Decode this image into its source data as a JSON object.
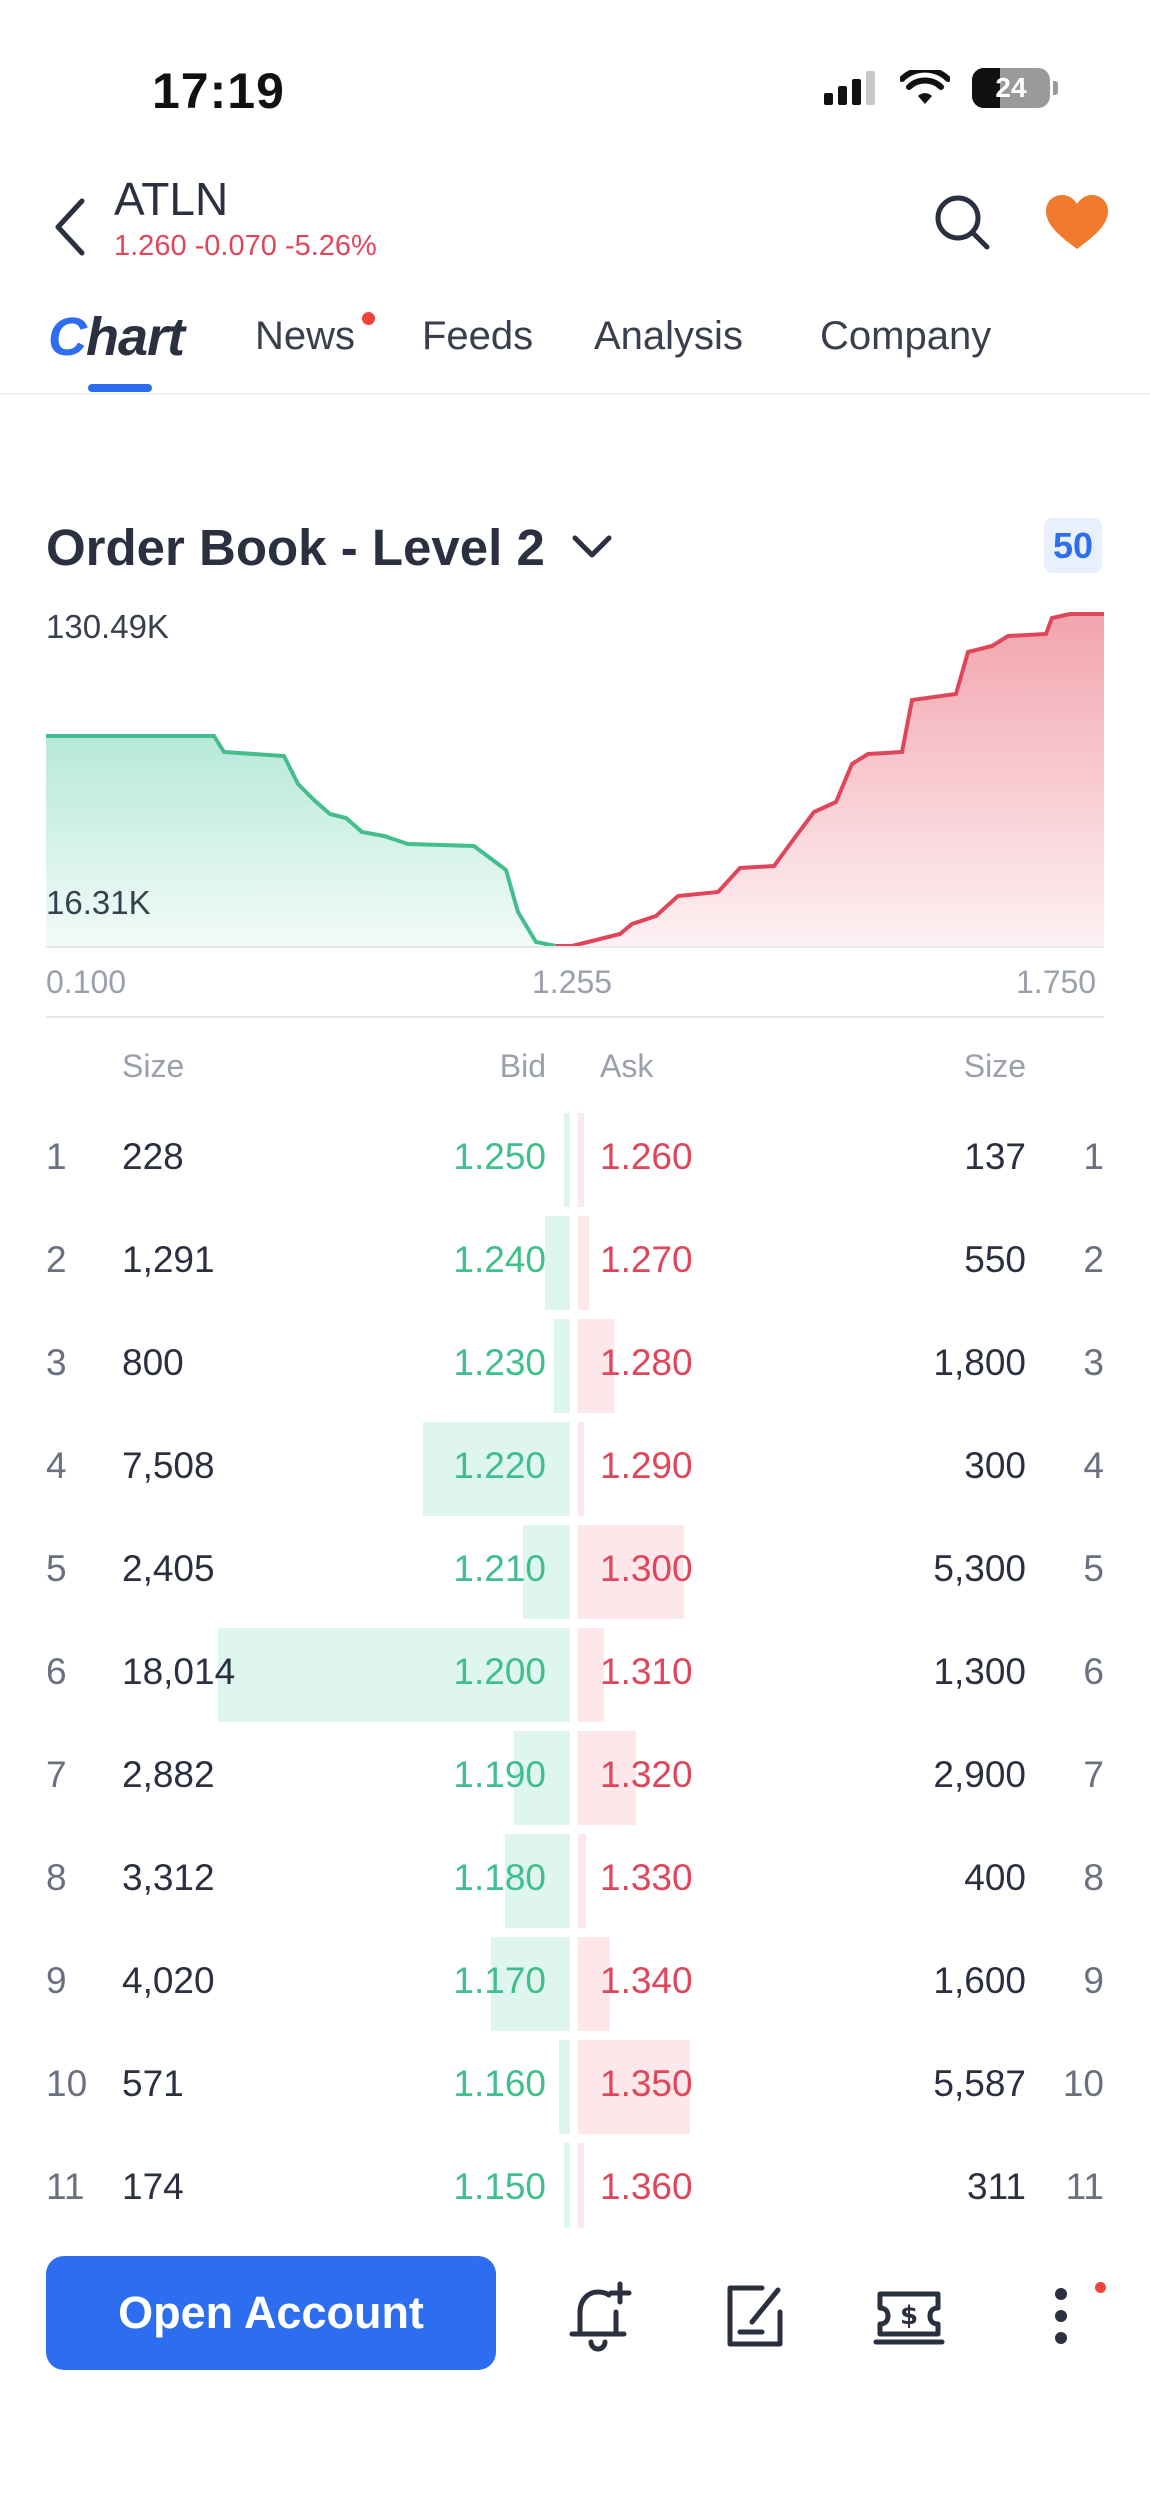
{
  "status_bar": {
    "time": "17:19",
    "battery": "24"
  },
  "header": {
    "ticker": "ATLN",
    "quote": "1.260 -0.070 -5.26%",
    "quote_color": "#e0465a"
  },
  "tabs": {
    "chart_c": "C",
    "chart_rest": "hart",
    "news": "News",
    "feeds": "Feeds",
    "analysis": "Analysis",
    "company": "Company",
    "active": "Chart"
  },
  "order_book": {
    "title": "Order Book - Level 2",
    "depth": "50",
    "chart": {
      "max_label": "130.49K",
      "min_label": "16.31K",
      "x_min": "0.100",
      "x_mid": "1.255",
      "x_max": "1.750"
    },
    "columns": {
      "size_left": "Size",
      "bid": "Bid",
      "ask": "Ask",
      "size_right": "Size"
    },
    "rows": [
      {
        "rank": "1",
        "bid_size": "228",
        "bid": "1.250",
        "ask": "1.260",
        "ask_size": "137"
      },
      {
        "rank": "2",
        "bid_size": "1,291",
        "bid": "1.240",
        "ask": "1.270",
        "ask_size": "550"
      },
      {
        "rank": "3",
        "bid_size": "800",
        "bid": "1.230",
        "ask": "1.280",
        "ask_size": "1,800"
      },
      {
        "rank": "4",
        "bid_size": "7,508",
        "bid": "1.220",
        "ask": "1.290",
        "ask_size": "300"
      },
      {
        "rank": "5",
        "bid_size": "2,405",
        "bid": "1.210",
        "ask": "1.300",
        "ask_size": "5,300"
      },
      {
        "rank": "6",
        "bid_size": "18,014",
        "bid": "1.200",
        "ask": "1.310",
        "ask_size": "1,300"
      },
      {
        "rank": "7",
        "bid_size": "2,882",
        "bid": "1.190",
        "ask": "1.320",
        "ask_size": "2,900"
      },
      {
        "rank": "8",
        "bid_size": "3,312",
        "bid": "1.180",
        "ask": "1.330",
        "ask_size": "400"
      },
      {
        "rank": "9",
        "bid_size": "4,020",
        "bid": "1.170",
        "ask": "1.340",
        "ask_size": "1,600"
      },
      {
        "rank": "10",
        "bid_size": "571",
        "bid": "1.160",
        "ask": "1.350",
        "ask_size": "5,587"
      },
      {
        "rank": "11",
        "bid_size": "174",
        "bid": "1.150",
        "ask": "1.360",
        "ask_size": "311"
      }
    ]
  },
  "bottom_bar": {
    "open_account": "Open Account",
    "icons": [
      "bell-plus-icon",
      "edit-note-icon",
      "dollar-ticket-icon",
      "more-vertical-icon"
    ]
  },
  "colors": {
    "accent": "#2d6ef0",
    "bid": "#3fbf8c",
    "ask": "#e0465a",
    "favorite": "#f07a2d"
  }
}
